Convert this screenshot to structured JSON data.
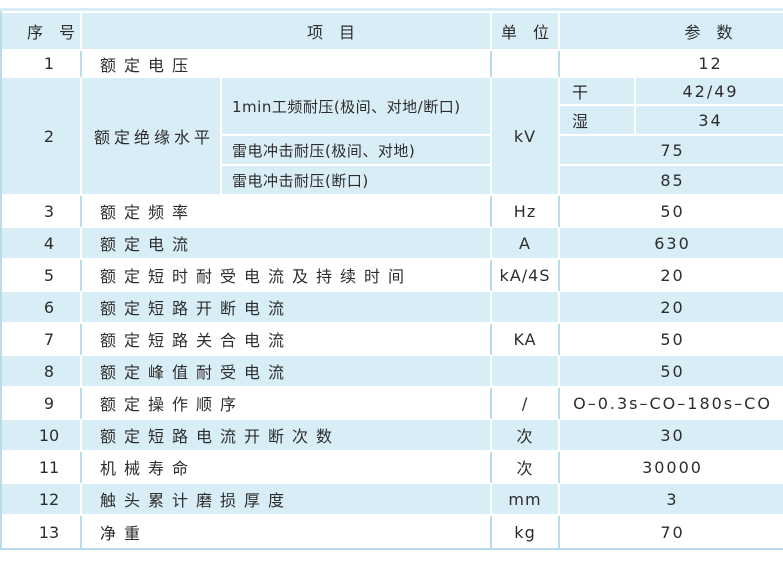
{
  "colors": {
    "row_blue": "#d9edf6",
    "border_blue": "#b9dcea",
    "text": "#2d2d2d"
  },
  "table": {
    "header": {
      "no": "序　号",
      "item": "项　目",
      "unit": "单　位",
      "param": "参　数"
    },
    "rows": [
      {
        "no": "1",
        "item": "额定电压",
        "unit": "",
        "value": "12"
      },
      {
        "no": "2",
        "item": "额定绝缘水平",
        "unit": "kV",
        "value": ""
      },
      {
        "no": "3",
        "item": "额定频率",
        "unit": "Hz",
        "value": "50"
      },
      {
        "no": "4",
        "item": "额定电流",
        "unit": "A",
        "value": "630"
      },
      {
        "no": "5",
        "item": "额定短时耐受电流及持续时间",
        "unit": "kA/4S",
        "value": "20"
      },
      {
        "no": "6",
        "item": "额定短路开断电流",
        "unit": "",
        "value": "20"
      },
      {
        "no": "7",
        "item": "额定短路关合电流",
        "unit": "KA",
        "value": "50"
      },
      {
        "no": "8",
        "item": "额定峰值耐受电流",
        "unit": "",
        "value": "50"
      },
      {
        "no": "9",
        "item": "额定操作顺序",
        "unit": "/",
        "value": "O–0.3s–CO–180s–CO"
      },
      {
        "no": "10",
        "item": "额定短路电流开断次数",
        "unit": "次",
        "value": "30"
      },
      {
        "no": "11",
        "item": "机械寿命",
        "unit": "次",
        "value": "30000"
      },
      {
        "no": "12",
        "item": "触头累计磨损厚度",
        "unit": "mm",
        "value": "3"
      },
      {
        "no": "13",
        "item": "净重",
        "unit": "kg",
        "value": "70"
      }
    ],
    "insulation": {
      "power_freq_item": "1min工频耐压(极间、对地/断口)",
      "dry_label": "干",
      "dry_value": "42/49",
      "wet_label": "湿",
      "wet_value": "34",
      "lightning_pole_item": "雷电冲击耐压(极间、对地)",
      "lightning_pole_value": "75",
      "lightning_break_item": "雷电冲击耐压(断口)",
      "lightning_break_value": "85"
    }
  }
}
